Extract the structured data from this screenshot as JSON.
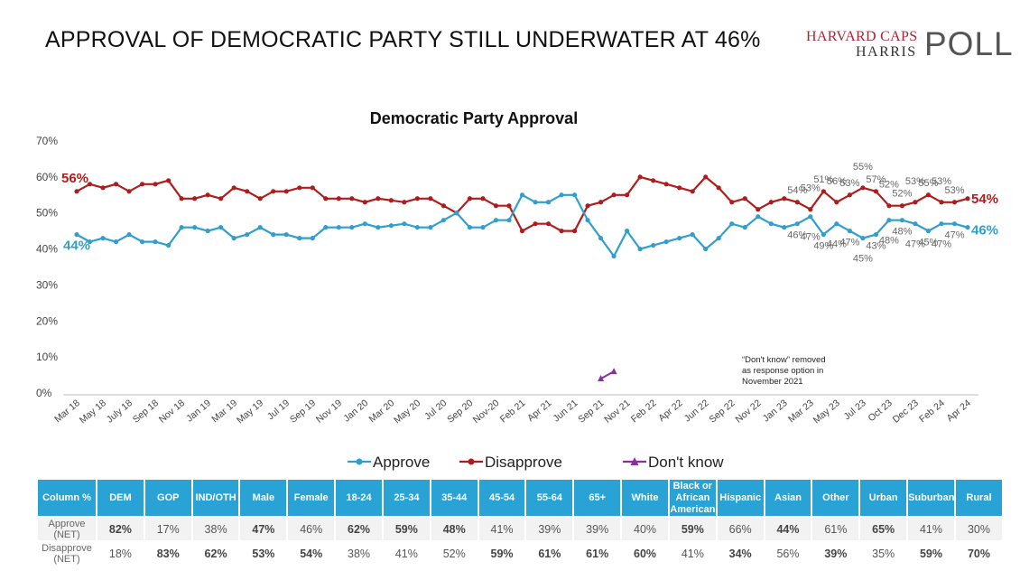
{
  "header": {
    "title": "APPROVAL OF DEMOCRATIC PARTY STILL UNDERWATER AT 46%",
    "logo_line1": "HARVARD CAPS",
    "logo_line2": "HARRIS",
    "logo_line3": "POLL"
  },
  "colors": {
    "approve": "#2e9fce",
    "disapprove": "#b01c1c",
    "dont_know": "#8b2fa0",
    "table_header": "#29a3d6"
  },
  "chart_data": {
    "type": "line",
    "title": "Democratic Party Approval",
    "xlabel": "",
    "ylabel": "",
    "ylim": [
      0,
      70
    ],
    "yticks": [
      "0%",
      "10%",
      "20%",
      "30%",
      "40%",
      "50%",
      "60%",
      "70%"
    ],
    "grid": false,
    "legend": "bottom",
    "x_tick_labels": [
      "Mar 18",
      "May 18",
      "July 18",
      "Sep 18",
      "Nov 18",
      "Jan 19",
      "Mar 19",
      "May 19",
      "Jul 19",
      "Sep 19",
      "Nov 19",
      "Jan 20",
      "Mar 20",
      "May 20",
      "Jul 20",
      "Sep 20",
      "Nov-20",
      "Feb 21",
      "Apr 21",
      "Jun 21",
      "Sep 21",
      "Nov 21",
      "Feb 22",
      "Apr 22",
      "Jun 22",
      "Sep 22",
      "Nov 22",
      "Jan 23",
      "Mar 23",
      "May 23",
      "Jul 23",
      "Oct 23",
      "Dec 23",
      "Feb 24",
      "Apr 24"
    ],
    "series": [
      {
        "name": "Approve",
        "color": "#2e9fce",
        "marker": "circle",
        "values": [
          44,
          42,
          43,
          42,
          44,
          42,
          42,
          41,
          46,
          46,
          45,
          46,
          43,
          44,
          46,
          44,
          44,
          43,
          43,
          46,
          46,
          46,
          47,
          46,
          46.5,
          47,
          46,
          46,
          48,
          50,
          46,
          46,
          48,
          48,
          55,
          53,
          53,
          55,
          55,
          48,
          43,
          38,
          45,
          40,
          41,
          42,
          43,
          44,
          40,
          43,
          47,
          46,
          49,
          47,
          46,
          47,
          49,
          44,
          47,
          45,
          43,
          44,
          48,
          48,
          47,
          45,
          47,
          47,
          46
        ]
      },
      {
        "name": "Disapprove",
        "color": "#b01c1c",
        "marker": "circle",
        "values": [
          56,
          58,
          57,
          58,
          56,
          58,
          58,
          59,
          54,
          54,
          55,
          54,
          57,
          56,
          54,
          56,
          56,
          57,
          57,
          54,
          54,
          54,
          53,
          54,
          53.5,
          53,
          54,
          54,
          52,
          50,
          54,
          54,
          52,
          52,
          45,
          47,
          47,
          45,
          45,
          52,
          53,
          55,
          55,
          60,
          59,
          58,
          57,
          56,
          60,
          57,
          53,
          54,
          51,
          53,
          54,
          53,
          51,
          56,
          53,
          55,
          57,
          56,
          52,
          52,
          53,
          55,
          53,
          53,
          54
        ]
      },
      {
        "name": "Don't know",
        "color": "#8b2fa0",
        "marker": "triangle",
        "start_index": 40,
        "values": [
          4,
          6
        ]
      }
    ],
    "annotations": {
      "approve_first": "44%",
      "approve_last": "46%",
      "disapprove_first": "56%",
      "disapprove_last": "54%",
      "approve_recent": [
        "46%",
        "47%",
        "49%",
        "44%",
        "47%",
        "45%",
        "43%",
        "48%",
        "48%",
        "47%",
        "45%",
        "47%",
        "47%"
      ],
      "disapprove_recent": [
        "54%",
        "53%",
        "51%",
        "56%",
        "53%",
        "55%",
        "57%",
        "52%",
        "52%",
        "53%",
        "55%",
        "53%",
        "53%"
      ],
      "note": "“Don't know” removed as response option in November 2021"
    }
  },
  "table": {
    "corner": "Column %",
    "columns": [
      "DEM",
      "GOP",
      "IND/OTH",
      "Male",
      "Female",
      "18-24",
      "25-34",
      "35-44",
      "45-54",
      "55-64",
      "65+",
      "White",
      "Black or African American",
      "Hispanic",
      "Asian",
      "Other",
      "Urban",
      "Suburban",
      "Rural"
    ],
    "rows": [
      {
        "label": "Approve (NET)",
        "values": [
          "82%",
          "17%",
          "38%",
          "47%",
          "46%",
          "62%",
          "59%",
          "48%",
          "41%",
          "39%",
          "39%",
          "40%",
          "59%",
          "66%",
          "44%",
          "61%",
          "65%",
          "41%",
          "30%"
        ],
        "bold": [
          true,
          false,
          false,
          true,
          false,
          true,
          true,
          true,
          false,
          false,
          false,
          false,
          true,
          false,
          true,
          false,
          true,
          false,
          false
        ]
      },
      {
        "label": "Disapprove (NET)",
        "values": [
          "18%",
          "83%",
          "62%",
          "53%",
          "54%",
          "38%",
          "41%",
          "52%",
          "59%",
          "61%",
          "61%",
          "60%",
          "41%",
          "34%",
          "56%",
          "39%",
          "35%",
          "59%",
          "70%"
        ],
        "bold": [
          false,
          true,
          true,
          true,
          true,
          false,
          false,
          false,
          true,
          true,
          true,
          true,
          false,
          true,
          false,
          true,
          false,
          true,
          true
        ]
      }
    ]
  }
}
